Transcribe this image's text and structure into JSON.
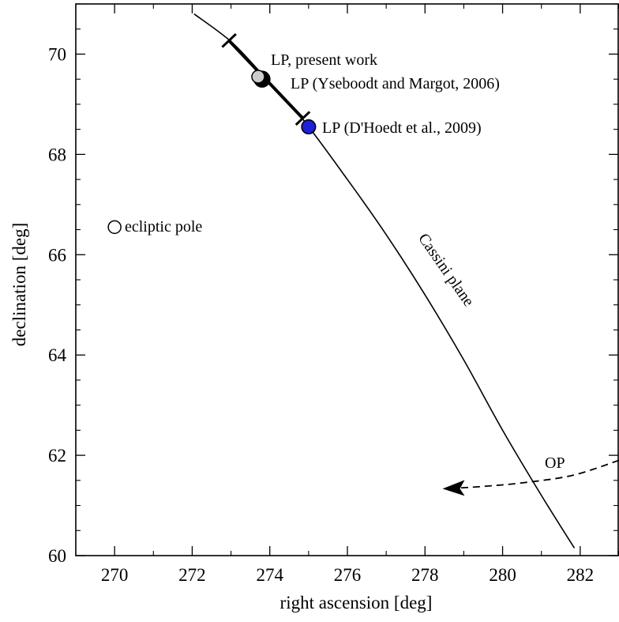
{
  "chart_data": {
    "type": "scatter",
    "xlabel": "right ascension [deg]",
    "ylabel": "declination [deg]",
    "xlim": [
      269,
      283
    ],
    "ylim": [
      60,
      71
    ],
    "x_major_ticks": [
      270,
      272,
      274,
      276,
      278,
      280,
      282
    ],
    "y_major_ticks": [
      60,
      62,
      64,
      66,
      68,
      70
    ],
    "x_minor_step": 1,
    "y_minor_step": 0.5,
    "grid": false,
    "legend": "none",
    "series": [
      {
        "name": "Cassini plane",
        "kind": "curve",
        "color": "#000000",
        "points": [
          [
            272.05,
            70.8
          ],
          [
            273.0,
            70.25
          ],
          [
            273.8,
            69.6
          ],
          [
            274.8,
            68.75
          ],
          [
            276.0,
            67.5
          ],
          [
            277.0,
            66.4
          ],
          [
            278.0,
            65.2
          ],
          [
            279.0,
            63.9
          ],
          [
            280.0,
            62.5
          ],
          [
            281.0,
            61.2
          ],
          [
            281.85,
            60.15
          ]
        ]
      },
      {
        "kind": "uncertainty-segment",
        "color": "#000000",
        "points": [
          [
            272.95,
            70.27
          ],
          [
            274.85,
            68.72
          ]
        ]
      },
      {
        "name": "OP",
        "kind": "dashed-arrow",
        "color": "#000000",
        "points": [
          [
            283.0,
            61.9
          ],
          [
            281.8,
            61.6
          ],
          [
            280.5,
            61.45
          ],
          [
            279.5,
            61.38
          ],
          [
            278.9,
            61.35
          ]
        ]
      }
    ],
    "points": [
      {
        "label": "LP, present work",
        "ra": 273.8,
        "dec": 69.5,
        "fill": "#000000",
        "r": 1.0
      },
      {
        "label": "LP (Yseboodt and Margot, 2006)",
        "ra": 273.7,
        "dec": 69.55,
        "fill": "#cccccc",
        "r": 0.75
      },
      {
        "label": "LP (D'Hoedt et al., 2009)",
        "ra": 275.0,
        "dec": 68.55,
        "fill": "#1f1fd6",
        "r": 0.85
      },
      {
        "label": "ecliptic pole",
        "ra": 270.0,
        "dec": 66.55,
        "fill": "#ffffff",
        "r": 0.75
      }
    ],
    "annotations": {
      "cassini_label": "Cassini plane",
      "op_label": "OP"
    }
  }
}
